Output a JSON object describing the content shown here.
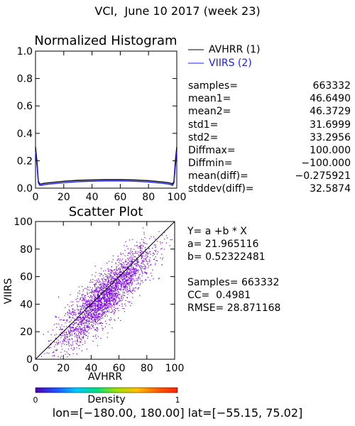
{
  "page": {
    "title": "VCI,  June 10 2017 (week 23)"
  },
  "chart_data": [
    {
      "type": "line",
      "title": "Normalized Histogram",
      "xlim": [
        0,
        100
      ],
      "ylim": [
        0,
        1.0
      ],
      "x_ticks": [
        "0",
        "20",
        "40",
        "60",
        "80",
        "100"
      ],
      "y_ticks": [
        "0.0",
        "0.2",
        "0.4",
        "0.6",
        "0.8",
        "1.0"
      ],
      "legend_position": "top-right",
      "series": [
        {
          "name": "AVHRR (1)",
          "color": "#000000",
          "x": [
            0,
            1,
            2,
            3,
            4,
            6,
            10,
            20,
            30,
            40,
            50,
            60,
            70,
            80,
            90,
            94,
            96,
            97,
            98,
            99,
            100
          ],
          "y": [
            0.3,
            0.2,
            0.05,
            0.03,
            0.03,
            0.035,
            0.04,
            0.05,
            0.057,
            0.06,
            0.062,
            0.062,
            0.06,
            0.055,
            0.045,
            0.04,
            0.035,
            0.03,
            0.05,
            0.2,
            0.3
          ]
        },
        {
          "name": "VIIRS (2)",
          "color": "#1a1aff",
          "x": [
            0,
            1,
            2,
            3,
            4,
            6,
            10,
            20,
            30,
            40,
            50,
            60,
            70,
            80,
            90,
            94,
            96,
            97,
            98,
            99,
            100
          ],
          "y": [
            0.27,
            0.17,
            0.04,
            0.02,
            0.02,
            0.025,
            0.03,
            0.04,
            0.047,
            0.05,
            0.053,
            0.053,
            0.05,
            0.045,
            0.035,
            0.03,
            0.025,
            0.02,
            0.04,
            0.16,
            0.27
          ]
        }
      ]
    },
    {
      "type": "scatter",
      "title": "Scatter Plot",
      "xlabel": "AVHRR",
      "ylabel": "VIIRS",
      "xlim": [
        0,
        100
      ],
      "ylim": [
        0,
        100
      ],
      "x_ticks": [
        "0",
        "20",
        "40",
        "60",
        "80",
        "100"
      ],
      "y_ticks": [
        "0",
        "20",
        "40",
        "60",
        "80",
        "100"
      ],
      "regression": {
        "a": 21.965116,
        "b": 0.52322481
      },
      "point_color": "#7a00e6",
      "colorbar": {
        "label": "Density",
        "min_label": "0",
        "max_label": "1",
        "colors": [
          "#4b00b0",
          "#2050ff",
          "#00c8ff",
          "#00e080",
          "#a0e000",
          "#ffc000",
          "#ff6000",
          "#ff2000"
        ]
      }
    }
  ],
  "stats": [
    {
      "label": "samples=",
      "value": "663332"
    },
    {
      "label": "mean1=",
      "value": "46.6490"
    },
    {
      "label": "mean2=",
      "value": "46.3729"
    },
    {
      "label": "std1=",
      "value": "31.6999"
    },
    {
      "label": "std2=",
      "value": "33.2956"
    },
    {
      "label": "Diffmax=",
      "value": "100.000"
    },
    {
      "label": "Diffmin=",
      "value": "−100.000"
    },
    {
      "label": "mean(diff)=",
      "value": "−0.275921"
    },
    {
      "label": "stddev(diff)=",
      "value": "32.5874"
    }
  ],
  "regression_text": {
    "equation": "Y= a +b * X",
    "a_line": "a= 21.965116",
    "b_line": "b= 0.52322481",
    "samples_line": "Samples= 663332",
    "cc_line": "CC=  0.4981",
    "rmse_line": "RMSE= 28.871168"
  },
  "footer": "lon=[−180.00, 180.00] lat=[−55.15, 75.02]"
}
